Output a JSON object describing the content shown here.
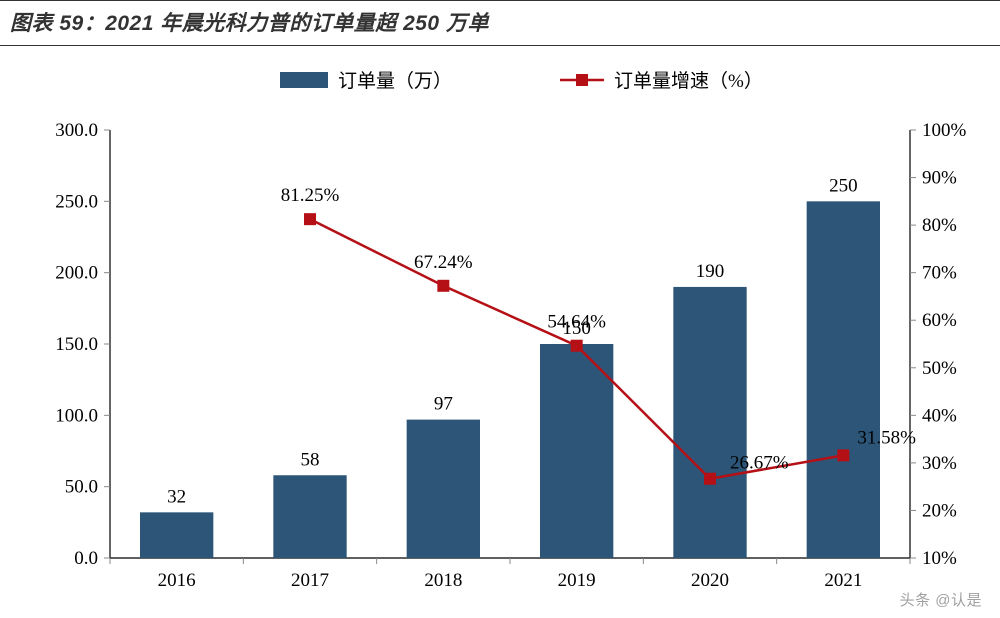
{
  "title": "图表 59：2021 年晨光科力普的订单量超 250 万单",
  "legend": {
    "bar_label": "订单量（万）",
    "line_label": "订单量增速（%）",
    "bar_color": "#2c5577",
    "line_color": "#b51016"
  },
  "chart": {
    "type": "bar+line",
    "categories": [
      "2016",
      "2017",
      "2018",
      "2019",
      "2020",
      "2021"
    ],
    "bar_values": [
      32,
      58,
      97,
      150,
      190,
      250
    ],
    "growth_values": [
      null,
      81.25,
      67.24,
      54.64,
      26.67,
      31.58
    ],
    "growth_labels": [
      "",
      "81.25%",
      "67.24%",
      "54.64%",
      "26.67%",
      "31.58%"
    ],
    "y_left": {
      "min": 0,
      "max": 300,
      "step": 50,
      "decimals": 1
    },
    "y_right": {
      "min": 10,
      "max": 100,
      "step": 10,
      "suffix": "%"
    },
    "bar_color": "#2c5577",
    "line_color": "#b51016",
    "marker_size": 12,
    "bar_width_ratio": 0.55,
    "background_color": "#ffffff",
    "axis_color": "#000000",
    "tick_color": "#888888",
    "font_size": 19
  },
  "watermark": "头条 @认是"
}
